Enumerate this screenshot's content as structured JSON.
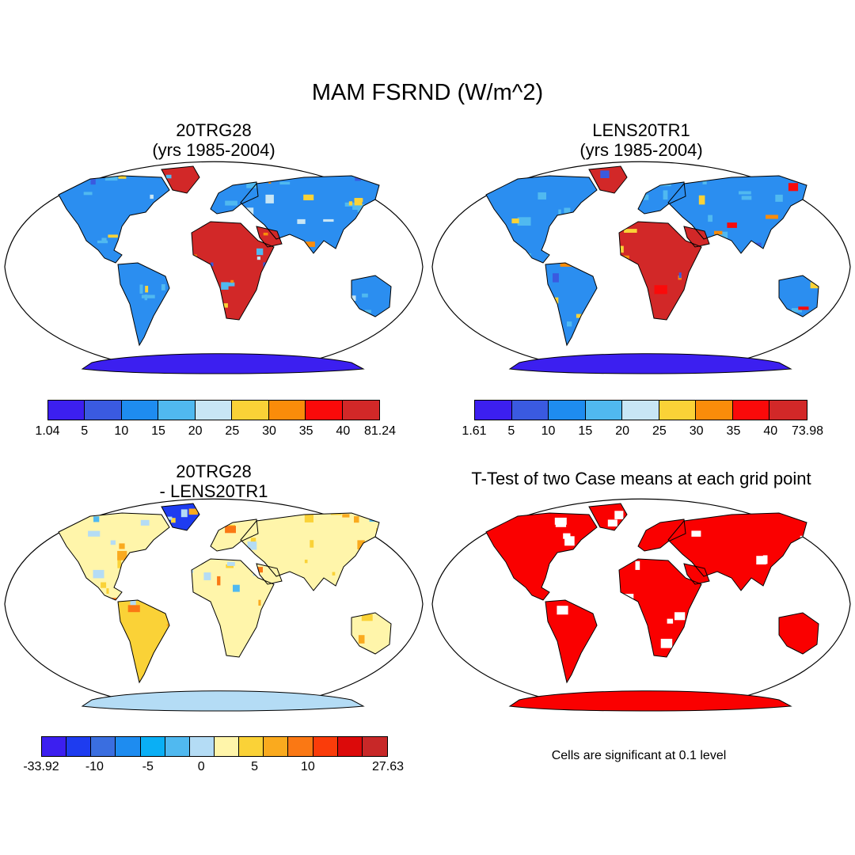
{
  "title": "MAM FSRND (W/m^2)",
  "panels": [
    {
      "id": "p1",
      "title_line1": "20TRG28",
      "title_line2": "(yrs 1985-2004)",
      "colorbar": {
        "colors": [
          "#3c1ff0",
          "#3a5ae0",
          "#1e8cf0",
          "#50b9f0",
          "#c8e6f5",
          "#fad237",
          "#fa8c0a",
          "#fa0a0a",
          "#d22828"
        ],
        "tick_labels": [
          "1.04",
          "5",
          "10",
          "15",
          "20",
          "25",
          "30",
          "35",
          "40",
          "81.24"
        ]
      }
    },
    {
      "id": "p2",
      "title_line1": "LENS20TR1",
      "title_line2": "(yrs 1985-2004)",
      "colorbar": {
        "colors": [
          "#3c1ff0",
          "#3a5ae0",
          "#1e8cf0",
          "#50b9f0",
          "#c8e6f5",
          "#fad237",
          "#fa8c0a",
          "#fa0a0a",
          "#d22828"
        ],
        "tick_labels": [
          "1.61",
          "5",
          "10",
          "15",
          "20",
          "25",
          "30",
          "35",
          "40",
          "73.98"
        ]
      }
    },
    {
      "id": "p3",
      "title_line1": "20TRG28",
      "title_line2": "- LENS20TR1",
      "colorbar": {
        "colors": [
          "#3c1ff0",
          "#1e3cf0",
          "#3a6ee0",
          "#1e8cf0",
          "#0aaff5",
          "#50b9f0",
          "#b4dcf5",
          "#fff5aa",
          "#fad237",
          "#faaa1e",
          "#fa7814",
          "#fa3c0a",
          "#dc0a0a",
          "#c82828"
        ],
        "tick_labels": [
          "-33.92",
          "",
          "-10",
          "",
          "-5",
          "",
          "0",
          "",
          "5",
          "",
          "10",
          "",
          "",
          "27.63"
        ]
      }
    },
    {
      "id": "p4",
      "title_line1": "T-Test of two Case means at each grid point",
      "note": "Cells are significant at 0.1 level",
      "significance_color": "#fa0000"
    }
  ]
}
